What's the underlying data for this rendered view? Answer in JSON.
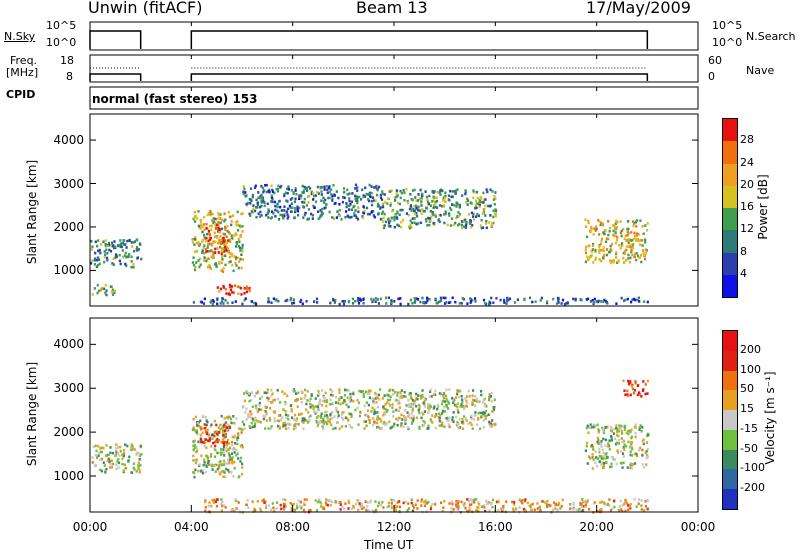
{
  "header": {
    "station": "Unwin (fitACF)",
    "beam": "Beam 13",
    "date": "17/May/2009"
  },
  "panels": {
    "nsky": {
      "label": "N.Sky",
      "y_top": "10^5",
      "y_bottom": "10^0",
      "right_top": "10^5",
      "right_bottom": "10^0",
      "right_label": "N.Search"
    },
    "freq": {
      "label_line1": "Freq.",
      "label_line2": "[MHz]",
      "y_top": "18",
      "y_bottom": "8",
      "right_top": "60",
      "right_bottom": "0",
      "right_label": "Nave"
    },
    "cpid": {
      "label": "CPID",
      "value": "normal (fast stereo) 153"
    }
  },
  "chart_data": [
    {
      "type": "heatmap",
      "name": "power",
      "ylabel": "Slant Range [km]",
      "yticks": [
        1000,
        2000,
        3000,
        4000
      ],
      "ylim": [
        180,
        4600
      ],
      "colorbar_label": "Power [dB]",
      "colorbar_ticks": [
        4,
        8,
        12,
        16,
        20,
        24,
        28
      ],
      "colorbar_colors": [
        "#1010e8",
        "#2a40b0",
        "#2e7a78",
        "#3e9e50",
        "#d8c020",
        "#f0a020",
        "#f07010",
        "#e81010"
      ],
      "regions": [
        {
          "t0": 0.0,
          "t1": 2.0,
          "r0": 1100,
          "r1": 1750,
          "level": 0.35
        },
        {
          "t0": 0.0,
          "t1": 1.0,
          "r0": 450,
          "r1": 700,
          "level": 0.5
        },
        {
          "t0": 4.0,
          "t1": 6.0,
          "r0": 1000,
          "r1": 2400,
          "level": 0.55
        },
        {
          "t0": 4.5,
          "t1": 5.5,
          "r0": 1400,
          "r1": 2100,
          "level": 0.8
        },
        {
          "t0": 5.0,
          "t1": 6.5,
          "r0": 450,
          "r1": 700,
          "level": 0.85
        },
        {
          "t0": 6.0,
          "t1": 11.5,
          "r0": 2200,
          "r1": 3000,
          "level": 0.3
        },
        {
          "t0": 11.5,
          "t1": 16.0,
          "r0": 2000,
          "r1": 2900,
          "level": 0.4
        },
        {
          "t0": 19.5,
          "t1": 22.0,
          "r0": 1200,
          "r1": 2200,
          "level": 0.6
        },
        {
          "t0": 4.0,
          "t1": 22.0,
          "r0": 250,
          "r1": 400,
          "level": 0.25
        }
      ]
    },
    {
      "type": "heatmap",
      "name": "velocity",
      "ylabel": "Slant Range [km]",
      "yticks": [
        1000,
        2000,
        3000,
        4000
      ],
      "ylim": [
        180,
        4600
      ],
      "xlabel": "Time UT",
      "xticks": [
        "00:00",
        "04:00",
        "08:00",
        "12:00",
        "16:00",
        "20:00",
        "00:00"
      ],
      "xlim": [
        0,
        24
      ],
      "colorbar_label": "Velocity [m s⁻¹]",
      "colorbar_ticks": [
        "200",
        "100",
        "50",
        "15",
        "-15",
        "-50",
        "-100",
        "-200"
      ],
      "colorbar_colors": [
        "#2030c0",
        "#2e6aa0",
        "#3c8a60",
        "#70c040",
        "#c8c8c8",
        "#e8a020",
        "#f07010",
        "#e02010",
        "#e81010"
      ],
      "regions": [
        {
          "t0": 0.0,
          "t1": 2.0,
          "r0": 1100,
          "r1": 1750,
          "level": 0.45
        },
        {
          "t0": 4.0,
          "t1": 6.0,
          "r0": 1000,
          "r1": 2400,
          "level": 0.45
        },
        {
          "t0": 4.3,
          "t1": 5.5,
          "r0": 1700,
          "r1": 2200,
          "level": 0.8
        },
        {
          "t0": 6.0,
          "t1": 16.0,
          "r0": 2100,
          "r1": 3000,
          "level": 0.45
        },
        {
          "t0": 19.5,
          "t1": 22.0,
          "r0": 1200,
          "r1": 2200,
          "level": 0.45
        },
        {
          "t0": 21.0,
          "t1": 22.0,
          "r0": 2800,
          "r1": 3200,
          "level": 0.85
        },
        {
          "t0": 4.5,
          "t1": 22.0,
          "r0": 200,
          "r1": 500,
          "level": 0.6
        }
      ]
    }
  ]
}
